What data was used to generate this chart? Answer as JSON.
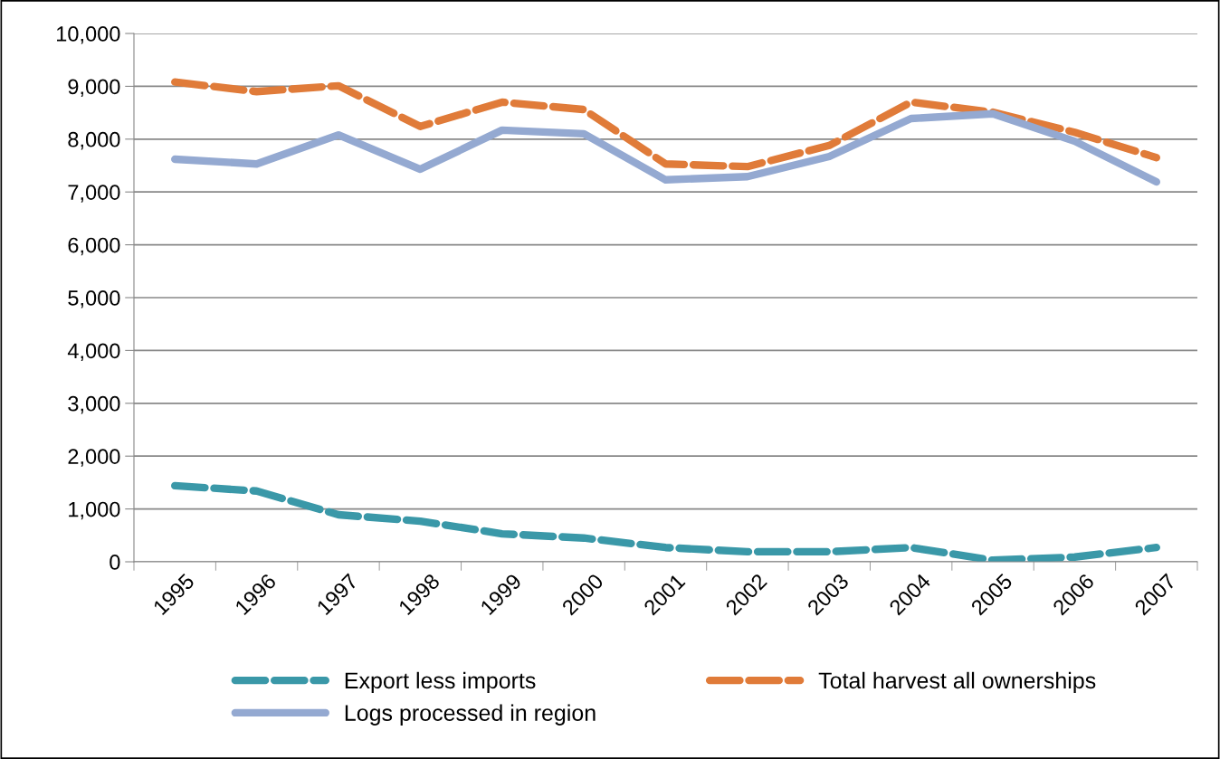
{
  "chart_data": {
    "type": "line",
    "categories": [
      "1995",
      "1996",
      "1997",
      "1998",
      "1999",
      "2000",
      "2001",
      "2002",
      "2003",
      "2004",
      "2005",
      "2006",
      "2007"
    ],
    "series": [
      {
        "name": "Export less imports",
        "color": "#3a98a8",
        "line_style": "dashed",
        "values": [
          1440,
          1340,
          890,
          770,
          530,
          450,
          270,
          190,
          190,
          270,
          30,
          90,
          270
        ]
      },
      {
        "name": "Total harvest all ownerships",
        "color": "#e07b39",
        "line_style": "dashed",
        "values": [
          9080,
          8900,
          9010,
          8240,
          8700,
          8560,
          7530,
          7480,
          7880,
          8700,
          8510,
          8130,
          7650
        ]
      },
      {
        "name": "Logs processed in region",
        "color": "#94a9d1",
        "line_style": "solid",
        "values": [
          7620,
          7530,
          8080,
          7430,
          8170,
          8100,
          7230,
          7290,
          7670,
          8390,
          8480,
          7960,
          7190
        ]
      }
    ],
    "ylim": [
      0,
      10000
    ],
    "yticks": [
      {
        "value": 0,
        "label": "0"
      },
      {
        "value": 1000,
        "label": "1,000"
      },
      {
        "value": 2000,
        "label": "2,000"
      },
      {
        "value": 3000,
        "label": "3,000"
      },
      {
        "value": 4000,
        "label": "4,000"
      },
      {
        "value": 5000,
        "label": "5,000"
      },
      {
        "value": 6000,
        "label": "6,000"
      },
      {
        "value": 7000,
        "label": "7,000"
      },
      {
        "value": 8000,
        "label": "8,000"
      },
      {
        "value": 9000,
        "label": "9,000"
      },
      {
        "value": 10000,
        "label": "10,000"
      }
    ],
    "grid": "y",
    "legend": "bottom",
    "marker": "none"
  }
}
